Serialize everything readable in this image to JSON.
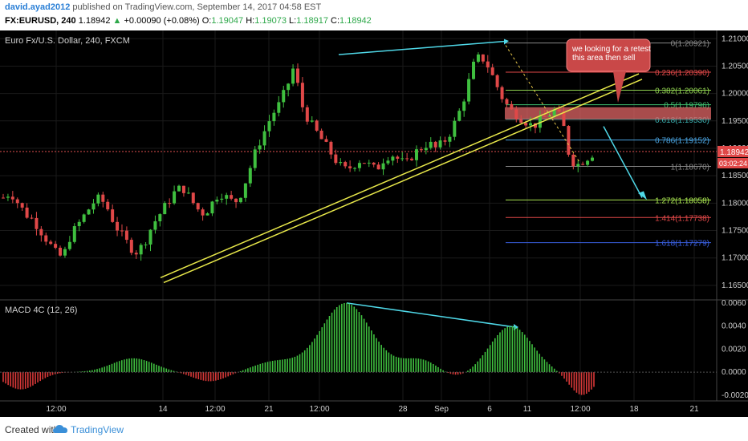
{
  "header": {
    "user": "david.ayad2012",
    "published": "published on TradingView.com, September 14, 2017 04:58 EST",
    "symbol": "FX:EURUSD, 240",
    "last": "1.18942",
    "change": "+0.00090 (+0.08%)",
    "o_label": "O:",
    "o": "1.19047",
    "h_label": "H:",
    "h": "1.19073",
    "l_label": "L:",
    "l": "1.18917",
    "c_label": "C:",
    "c": "1.18942"
  },
  "chart_title": "Euro Fx/U.S. Dollar, 240, FXCM",
  "macd_title": "MACD 4C (12, 26)",
  "annotation": "we looking for a retest\nthis area then sell",
  "price_label": "1.18942",
  "countdown_label": "03:02:24",
  "fib_levels": [
    {
      "ratio": "0",
      "price": "1.20921",
      "color": "#888888"
    },
    {
      "ratio": "0.236",
      "price": "1.20390",
      "color": "#e04848"
    },
    {
      "ratio": "0.382",
      "price": "1.20061",
      "color": "#8fd14f"
    },
    {
      "ratio": "0.5",
      "price": "1.19796",
      "color": "#3fbf6f"
    },
    {
      "ratio": "0.618",
      "price": "1.19530",
      "color": "#3ab0b0"
    },
    {
      "ratio": "0.786",
      "price": "1.19152",
      "color": "#4aa3df"
    },
    {
      "ratio": "1",
      "price": "1.18670",
      "color": "#888888"
    },
    {
      "ratio": "1.272",
      "price": "1.18058",
      "color": "#a7e34f"
    },
    {
      "ratio": "1.414",
      "price": "1.17738",
      "color": "#e04848"
    },
    {
      "ratio": "1.618",
      "price": "1.17279",
      "color": "#3a5fe0"
    }
  ],
  "footer": {
    "created": "Created with",
    "brand": "TradingView"
  },
  "chart_data": [
    {
      "type": "candlestick",
      "title": "Euro Fx/U.S. Dollar, 240, FXCM",
      "ylim": [
        1.1625,
        1.2115
      ],
      "y_ticks": [
        "1.21000",
        "1.20500",
        "1.20000",
        "1.19500",
        "1.19000",
        "1.18500",
        "1.18000",
        "1.17500",
        "1.17000",
        "1.16500"
      ],
      "x_ticks": [
        "12:00",
        "14",
        "12:00",
        "21",
        "12:00",
        "28",
        "Sep",
        "6",
        "11",
        "12:00",
        "18",
        "21"
      ],
      "price_path": [
        1.181,
        1.182,
        1.18,
        1.178,
        1.177,
        1.175,
        1.173,
        1.171,
        1.17,
        1.174,
        1.176,
        1.178,
        1.18,
        1.181,
        1.179,
        1.176,
        1.174,
        1.172,
        1.171,
        1.173,
        1.176,
        1.178,
        1.18,
        1.182,
        1.183,
        1.181,
        1.179,
        1.178,
        1.18,
        1.182,
        1.181,
        1.18,
        1.182,
        1.186,
        1.19,
        1.193,
        1.196,
        1.198,
        1.201,
        1.205,
        1.198,
        1.195,
        1.193,
        1.191,
        1.189,
        1.187,
        1.186,
        1.187,
        1.188,
        1.187,
        1.186,
        1.188,
        1.189,
        1.188,
        1.187,
        1.189,
        1.19,
        1.191,
        1.19,
        1.191,
        1.193,
        1.196,
        1.2,
        1.205,
        1.207,
        1.205,
        1.202,
        1.199,
        1.197,
        1.196,
        1.195,
        1.194,
        1.195,
        1.196,
        1.197,
        1.195,
        1.188,
        1.187,
        1.188,
        1.189
      ]
    },
    {
      "type": "bar",
      "title": "MACD 4C (12, 26)",
      "ylim": [
        -0.0025,
        0.0062
      ],
      "y_ticks": [
        "0.0060",
        "0.0040",
        "0.0020",
        "0.0000",
        "-0.0020"
      ]
    }
  ]
}
